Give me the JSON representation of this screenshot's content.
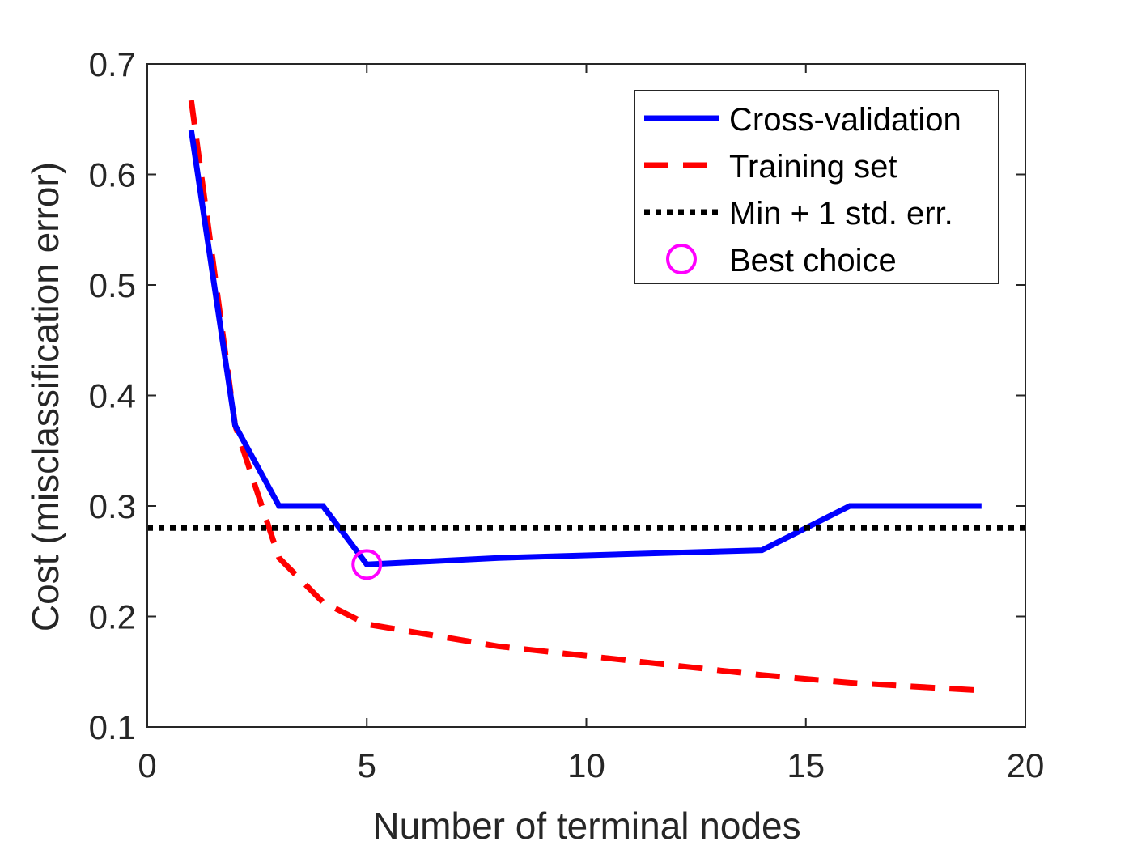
{
  "chart_data": {
    "type": "line",
    "title": "",
    "xlabel": "Number of terminal nodes",
    "ylabel": "Cost (misclassification error)",
    "xlim": [
      0,
      20
    ],
    "ylim": [
      0.1,
      0.7
    ],
    "xticks": [
      0,
      5,
      10,
      15,
      20
    ],
    "yticks": [
      0.1,
      0.2,
      0.3,
      0.4,
      0.5,
      0.6,
      0.7
    ],
    "xtick_labels": [
      "0",
      "5",
      "10",
      "15",
      "20"
    ],
    "ytick_labels": [
      "0.1",
      "0.2",
      "0.3",
      "0.4",
      "0.5",
      "0.6",
      "0.7"
    ],
    "grid": false,
    "legend_position": "top-right",
    "series": [
      {
        "name": "Cross-validation",
        "color": "#0000ff",
        "style": "solid",
        "x": [
          1,
          2,
          3,
          4,
          5,
          8,
          14,
          16,
          19
        ],
        "y": [
          0.64,
          0.373,
          0.3,
          0.3,
          0.247,
          0.253,
          0.26,
          0.3,
          0.3
        ]
      },
      {
        "name": "Training set",
        "color": "#ff0000",
        "style": "dashed",
        "x": [
          1,
          2,
          3,
          4,
          5,
          8,
          14,
          16,
          19
        ],
        "y": [
          0.667,
          0.373,
          0.253,
          0.213,
          0.193,
          0.173,
          0.147,
          0.14,
          0.133
        ]
      },
      {
        "name": "Min + 1 std. err.",
        "color": "#000000",
        "style": "dotted",
        "x": [
          0,
          20
        ],
        "y": [
          0.28,
          0.28
        ]
      }
    ],
    "markers": [
      {
        "name": "Best choice",
        "color": "#ff00ff",
        "shape": "circle",
        "x": 5,
        "y": 0.247
      }
    ]
  }
}
